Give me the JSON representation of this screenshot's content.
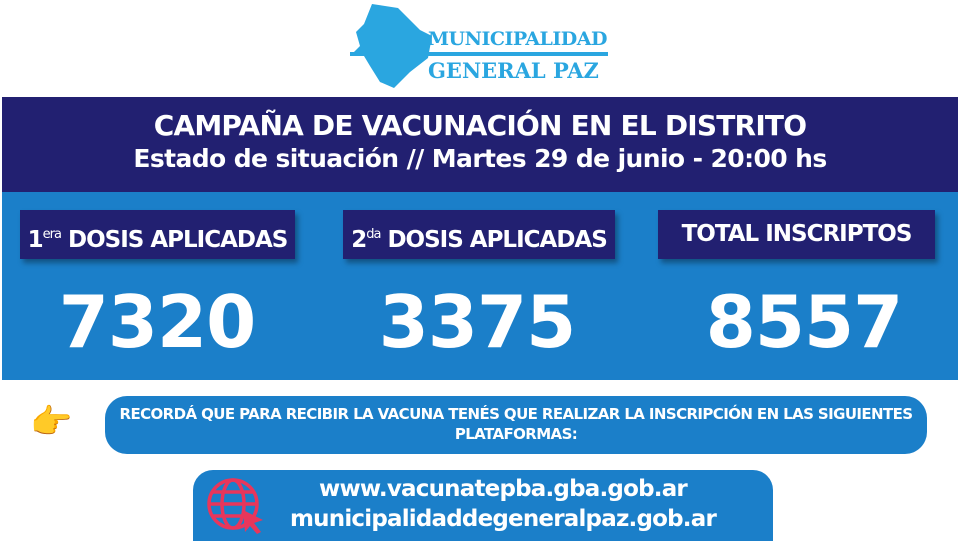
{
  "logo": {
    "line1": "MUNICIPALIDAD",
    "line2": "GENERAL PAZ",
    "color": "#2aa6e0"
  },
  "header": {
    "title": "CAMPAÑA DE VACUNACIÓN EN EL DISTRITO",
    "subtitle": "Estado de situación // Martes 29 de junio - 20:00 hs"
  },
  "stats": [
    {
      "prefix": "1",
      "sup": "era",
      "label": "DOSIS APLICADAS",
      "value": "7320"
    },
    {
      "prefix": "2",
      "sup": "da",
      "label": "DOSIS APLICADAS",
      "value": "3375"
    },
    {
      "prefix": "",
      "sup": "",
      "label": "TOTAL INSCRIPTOS",
      "value": "8557"
    }
  ],
  "note": {
    "icon": "pointing-hand-icon",
    "text": "RECORDÁ QUE PARA RECIBIR LA VACUNA TENÉS QUE REALIZAR LA INSCRIPCIÓN EN LAS SIGUIENTES PLATAFORMAS:"
  },
  "websites": {
    "icon": "globe-cursor-icon",
    "url1": "www.vacunatepba.gba.gob.ar",
    "url2": "municipalidaddegeneralpaz.gob.ar"
  },
  "colors": {
    "navy": "#222071",
    "blue": "#1b7fc9",
    "logo": "#2aa6e0",
    "globe": "#e8365b"
  }
}
